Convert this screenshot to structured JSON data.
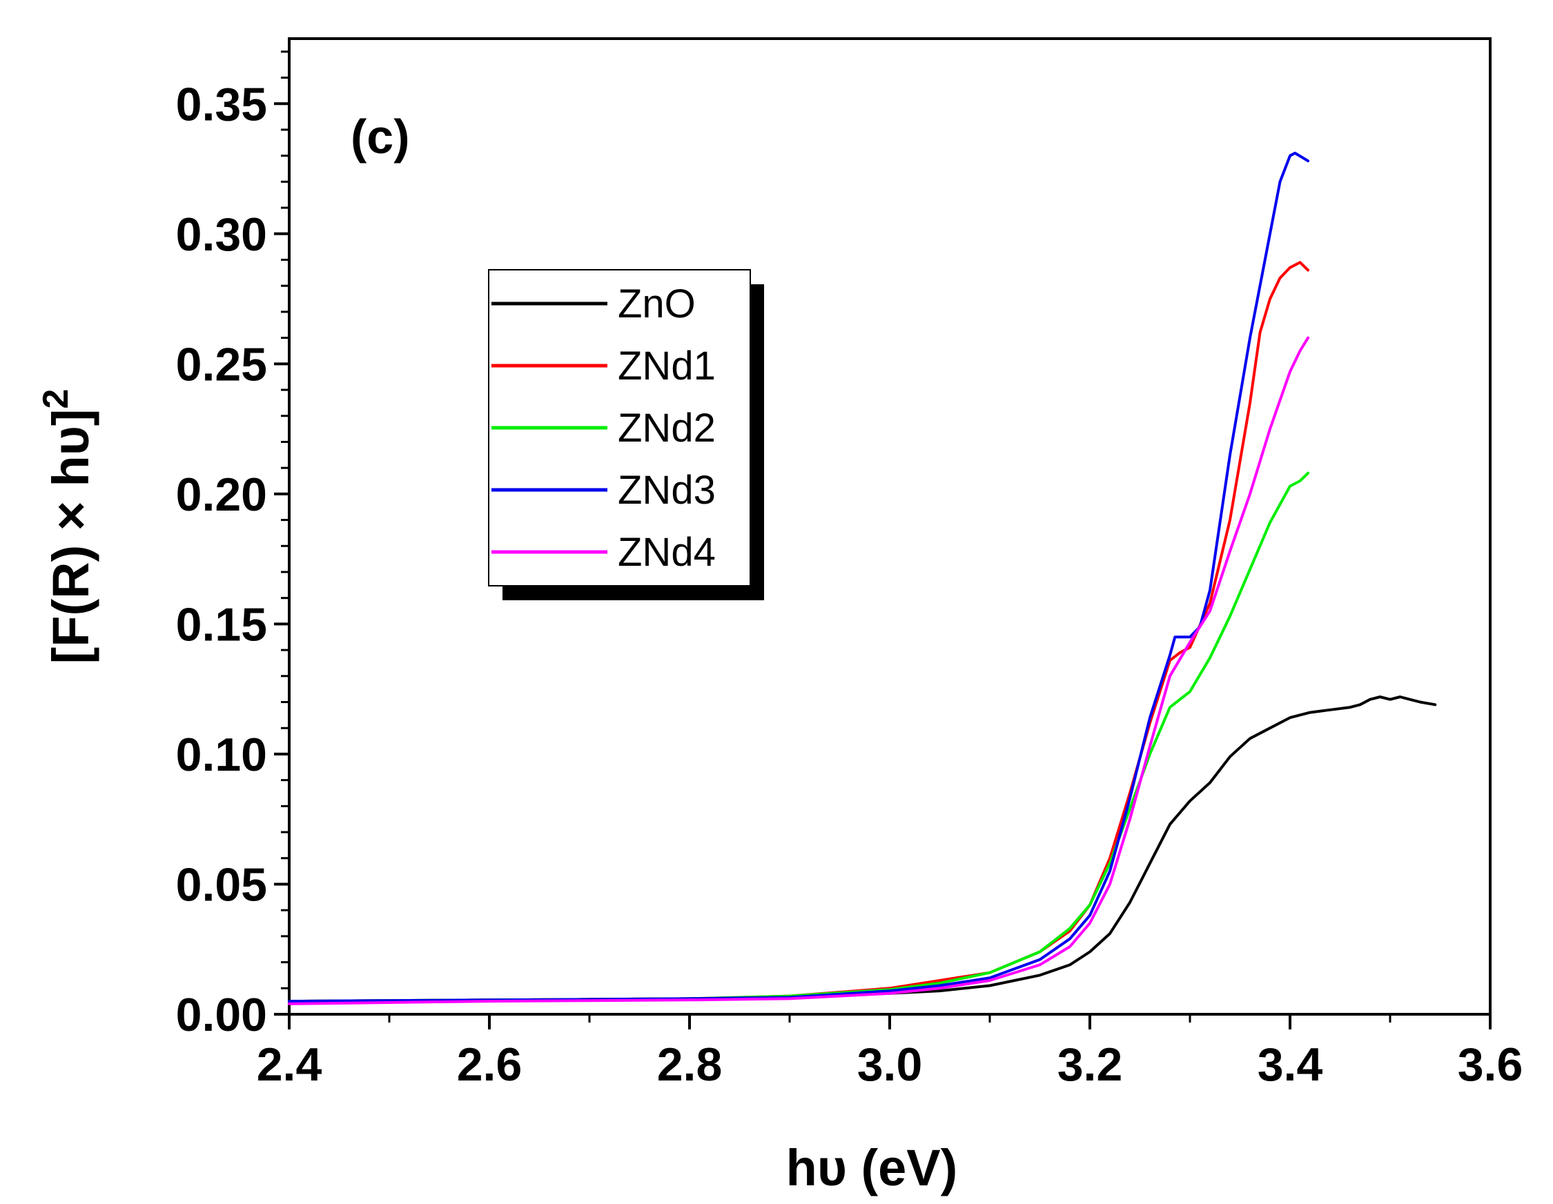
{
  "chart_data": {
    "type": "line",
    "panel_label": "(c)",
    "xlabel": "hυ (eV)",
    "ylabel": {
      "main": "[F(R) × hυ]",
      "superscript": "2"
    },
    "xlim": [
      2.4,
      3.6
    ],
    "ylim": [
      0.0,
      0.375
    ],
    "xticks": [
      2.4,
      2.6,
      2.8,
      3.0,
      3.2,
      3.4,
      3.6
    ],
    "xtick_labels": [
      "2.4",
      "2.6",
      "2.8",
      "3.0",
      "3.2",
      "3.4",
      "3.6"
    ],
    "yticks": [
      0.0,
      0.05,
      0.1,
      0.15,
      0.2,
      0.25,
      0.3,
      0.35
    ],
    "ytick_labels": [
      "0.00",
      "0.05",
      "0.10",
      "0.15",
      "0.20",
      "0.25",
      "0.30",
      "0.35"
    ],
    "legend_position": "upper-left",
    "series": [
      {
        "name": "ZnO",
        "color": "#000000",
        "x": [
          2.4,
          2.6,
          2.8,
          2.9,
          3.0,
          3.05,
          3.1,
          3.15,
          3.18,
          3.2,
          3.22,
          3.24,
          3.26,
          3.28,
          3.3,
          3.32,
          3.34,
          3.36,
          3.38,
          3.4,
          3.42,
          3.44,
          3.46,
          3.47,
          3.48,
          3.49,
          3.5,
          3.51,
          3.53,
          3.545
        ],
        "y": [
          0.005,
          0.0055,
          0.006,
          0.0065,
          0.008,
          0.009,
          0.011,
          0.015,
          0.019,
          0.024,
          0.031,
          0.043,
          0.058,
          0.073,
          0.082,
          0.089,
          0.099,
          0.106,
          0.11,
          0.114,
          0.116,
          0.117,
          0.118,
          0.119,
          0.121,
          0.122,
          0.121,
          0.122,
          0.12,
          0.119
        ]
      },
      {
        "name": "ZNd1",
        "color": "#ff0000",
        "x": [
          2.4,
          2.6,
          2.8,
          2.9,
          3.0,
          3.05,
          3.1,
          3.15,
          3.18,
          3.2,
          3.22,
          3.24,
          3.26,
          3.28,
          3.29,
          3.3,
          3.32,
          3.34,
          3.36,
          3.37,
          3.38,
          3.39,
          3.4,
          3.41,
          3.418
        ],
        "y": [
          0.005,
          0.0055,
          0.006,
          0.007,
          0.01,
          0.013,
          0.016,
          0.024,
          0.032,
          0.042,
          0.06,
          0.085,
          0.112,
          0.136,
          0.139,
          0.141,
          0.158,
          0.19,
          0.235,
          0.262,
          0.275,
          0.283,
          0.287,
          0.289,
          0.286
        ]
      },
      {
        "name": "ZNd2",
        "color": "#00ee00",
        "x": [
          2.4,
          2.6,
          2.8,
          2.9,
          3.0,
          3.05,
          3.1,
          3.15,
          3.18,
          3.2,
          3.22,
          3.24,
          3.26,
          3.28,
          3.29,
          3.3,
          3.32,
          3.34,
          3.36,
          3.38,
          3.4,
          3.41,
          3.418
        ],
        "y": [
          0.005,
          0.0055,
          0.006,
          0.007,
          0.0095,
          0.012,
          0.016,
          0.024,
          0.033,
          0.042,
          0.058,
          0.079,
          0.1,
          0.118,
          0.121,
          0.124,
          0.137,
          0.153,
          0.171,
          0.189,
          0.203,
          0.205,
          0.208
        ]
      },
      {
        "name": "ZNd3",
        "color": "#0000ee",
        "x": [
          2.4,
          2.6,
          2.8,
          2.9,
          3.0,
          3.05,
          3.1,
          3.15,
          3.18,
          3.2,
          3.22,
          3.24,
          3.26,
          3.28,
          3.285,
          3.3,
          3.31,
          3.32,
          3.34,
          3.36,
          3.38,
          3.39,
          3.4,
          3.405,
          3.418
        ],
        "y": [
          0.005,
          0.0055,
          0.006,
          0.0065,
          0.009,
          0.011,
          0.014,
          0.021,
          0.029,
          0.038,
          0.055,
          0.083,
          0.114,
          0.138,
          0.145,
          0.145,
          0.149,
          0.163,
          0.215,
          0.26,
          0.3,
          0.32,
          0.33,
          0.331,
          0.328
        ]
      },
      {
        "name": "ZNd4",
        "color": "#ff00ff",
        "x": [
          2.4,
          2.6,
          2.8,
          2.9,
          3.0,
          3.05,
          3.1,
          3.15,
          3.18,
          3.2,
          3.22,
          3.24,
          3.26,
          3.28,
          3.3,
          3.32,
          3.34,
          3.36,
          3.38,
          3.4,
          3.41,
          3.418
        ],
        "y": [
          0.004,
          0.005,
          0.0055,
          0.006,
          0.008,
          0.01,
          0.013,
          0.019,
          0.026,
          0.035,
          0.05,
          0.075,
          0.103,
          0.13,
          0.143,
          0.155,
          0.178,
          0.2,
          0.225,
          0.247,
          0.255,
          0.26
        ]
      }
    ]
  }
}
